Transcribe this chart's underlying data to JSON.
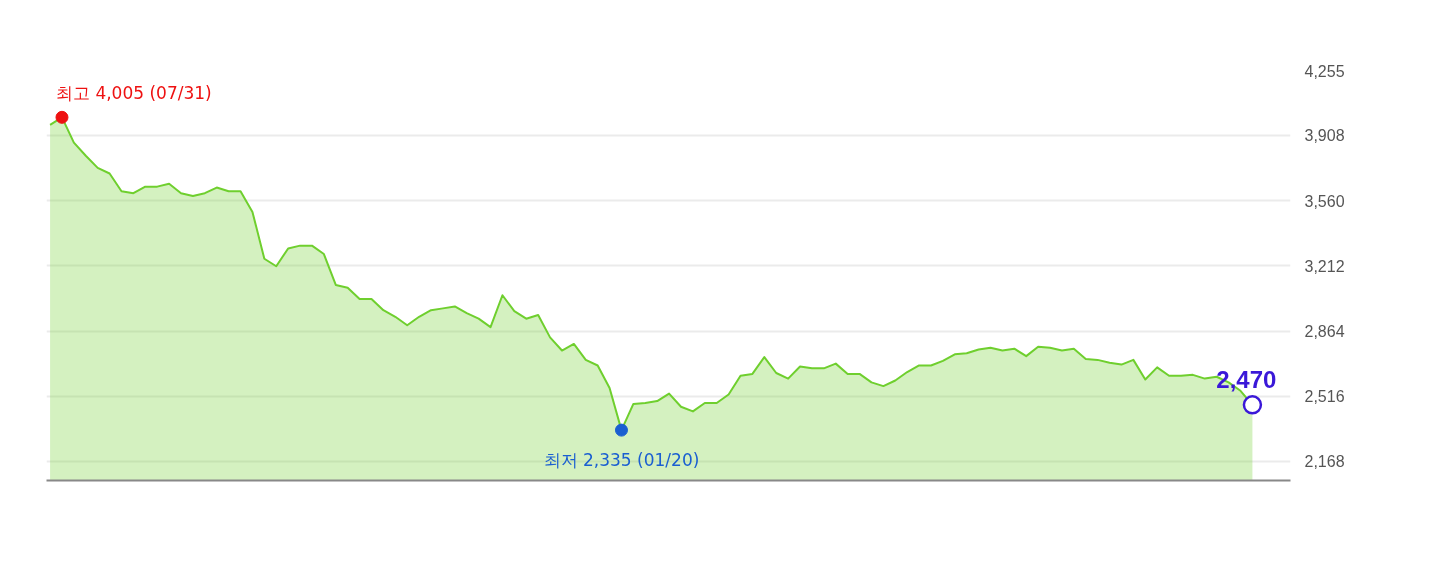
{
  "chart_data": {
    "type": "area",
    "categories": [
      null,
      null,
      null,
      null,
      null,
      null,
      null,
      null,
      null,
      null,
      null,
      null,
      null,
      null,
      null,
      null,
      null,
      null,
      null,
      null,
      null,
      null,
      null,
      null,
      null,
      null,
      null,
      null,
      null,
      null,
      null,
      null,
      null,
      null,
      null,
      null,
      null,
      null,
      null,
      null,
      null,
      null,
      null,
      null,
      null,
      null,
      null,
      null,
      null,
      null,
      null,
      null,
      null,
      null,
      null,
      null,
      null,
      null,
      null,
      null,
      null,
      null,
      null,
      null,
      null,
      null,
      null,
      null,
      null,
      null,
      null,
      null,
      null,
      null,
      null,
      null,
      null,
      null,
      null,
      null,
      null,
      null,
      null,
      null,
      null,
      null,
      null,
      null,
      null,
      null,
      null,
      null,
      null,
      null,
      null,
      null,
      null,
      null,
      null,
      null,
      null,
      null
    ],
    "series": [
      {
        "color": "#6fcf2e",
        "values": [
          3965,
          4005,
          3870,
          3800,
          3735,
          3705,
          3610,
          3600,
          3635,
          3635,
          3650,
          3600,
          3585,
          3600,
          3630,
          3610,
          3610,
          3500,
          3250,
          3210,
          3305,
          3320,
          3320,
          3275,
          3110,
          3095,
          3035,
          3035,
          2975,
          2940,
          2895,
          2940,
          2975,
          2985,
          2995,
          2960,
          2930,
          2885,
          3055,
          2970,
          2930,
          2950,
          2830,
          2760,
          2795,
          2710,
          2680,
          2560,
          2335,
          2475,
          2480,
          2490,
          2530,
          2460,
          2435,
          2480,
          2480,
          2525,
          2625,
          2635,
          2725,
          2640,
          2610,
          2675,
          2665,
          2665,
          2690,
          2635,
          2635,
          2590,
          2570,
          2600,
          2645,
          2680,
          2680,
          2705,
          2740,
          2745,
          2765,
          2775,
          2760,
          2770,
          2730,
          2780,
          2775,
          2760,
          2770,
          2715,
          2710,
          2695,
          2685,
          2710,
          2605,
          2670,
          2625,
          2625,
          2630,
          2610,
          2620,
          2590,
          2545,
          2470
        ]
      }
    ],
    "ylim": [
      2066,
      4255
    ],
    "yticks": [
      {
        "value": 2168,
        "label": "2,168"
      },
      {
        "value": 2516,
        "label": "2,516"
      },
      {
        "value": 2864,
        "label": "2,864"
      },
      {
        "value": 3212,
        "label": "3,212"
      },
      {
        "value": 3560,
        "label": "3,560"
      },
      {
        "value": 3908,
        "label": "3,908"
      },
      {
        "value": 4255,
        "label": "4,255"
      }
    ],
    "grid": "y",
    "tick_labels": "y",
    "annotations": [
      "최고 4,005 (07/31)",
      "최저 2,335 (01/20)",
      "2,470"
    ]
  }
}
